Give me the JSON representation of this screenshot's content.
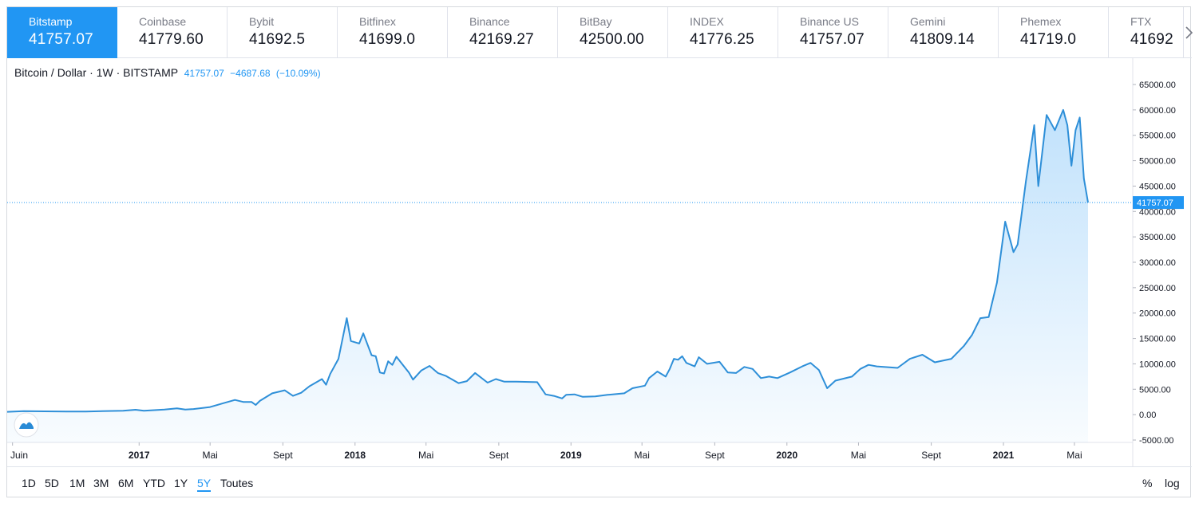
{
  "exchanges": [
    {
      "name": "Bitstamp",
      "price": "41757.07"
    },
    {
      "name": "Coinbase",
      "price": "41779.60"
    },
    {
      "name": "Bybit",
      "price": "41692.5"
    },
    {
      "name": "Bitfinex",
      "price": "41699.0"
    },
    {
      "name": "Binance",
      "price": "42169.27"
    },
    {
      "name": "BitBay",
      "price": "42500.00"
    },
    {
      "name": "INDEX",
      "price": "41776.25"
    },
    {
      "name": "Binance US",
      "price": "41757.07"
    },
    {
      "name": "Gemini",
      "price": "41809.14"
    },
    {
      "name": "Phemex",
      "price": "41719.0"
    },
    {
      "name": "FTX",
      "price": "41692"
    }
  ],
  "legend": {
    "symbol": "Bitcoin / Dollar · 1W · BITSTAMP",
    "last": "41757.07",
    "change": "−4687.68",
    "change_pct": "(−10.09%)"
  },
  "price_tag": "41757.07",
  "ranges": [
    {
      "label": "1D",
      "active": false
    },
    {
      "label": "5D",
      "active": false
    },
    {
      "label": "1M",
      "active": false
    },
    {
      "label": "3M",
      "active": false
    },
    {
      "label": "6M",
      "active": false
    },
    {
      "label": "YTD",
      "active": false
    },
    {
      "label": "1Y",
      "active": false
    },
    {
      "label": "5Y",
      "active": true
    },
    {
      "label": "Toutes",
      "active": false
    }
  ],
  "scale_options": {
    "percent": "%",
    "log": "log"
  },
  "colors": {
    "line": "#2e8fd8",
    "accent": "#2196f3",
    "active_tab": "#2196f3"
  },
  "icons": {
    "next": "chevron-right-icon",
    "logo": "tradingview-logo-icon"
  },
  "chart_data": {
    "type": "area",
    "series_label": "Bitcoin / Dollar · 1W · BITSTAMP",
    "x_ticks": [
      "Juin",
      "2017",
      "Mai",
      "Sept",
      "2018",
      "Mai",
      "Sept",
      "2019",
      "Mai",
      "Sept",
      "2020",
      "Mai",
      "Sept",
      "2021",
      "Mai"
    ],
    "y_ticks": [
      "65000.00",
      "60000.00",
      "55000.00",
      "50000.00",
      "45000.00",
      "40000.00",
      "35000.00",
      "30000.00",
      "25000.00",
      "20000.00",
      "15000.00",
      "10000.00",
      "5000.00",
      "0.00",
      "-5000.00"
    ],
    "ylim": [
      -5000,
      65000
    ],
    "last_price": 41757.07,
    "grid": false,
    "points": [
      [
        "2016-05-23",
        550
      ],
      [
        "2016-06-20",
        700
      ],
      [
        "2016-07-25",
        650
      ],
      [
        "2016-09-01",
        600
      ],
      [
        "2016-10-03",
        620
      ],
      [
        "2016-11-07",
        710
      ],
      [
        "2016-12-05",
        760
      ],
      [
        "2016-12-26",
        960
      ],
      [
        "2017-01-09",
        780
      ],
      [
        "2017-02-13",
        1000
      ],
      [
        "2017-03-06",
        1250
      ],
      [
        "2017-03-20",
        1000
      ],
      [
        "2017-04-03",
        1100
      ],
      [
        "2017-05-01",
        1500
      ],
      [
        "2017-05-22",
        2200
      ],
      [
        "2017-06-12",
        2900
      ],
      [
        "2017-06-26",
        2500
      ],
      [
        "2017-07-10",
        2500
      ],
      [
        "2017-07-17",
        1900
      ],
      [
        "2017-07-24",
        2700
      ],
      [
        "2017-08-14",
        4200
      ],
      [
        "2017-09-04",
        4800
      ],
      [
        "2017-09-18",
        3700
      ],
      [
        "2017-10-02",
        4300
      ],
      [
        "2017-10-16",
        5600
      ],
      [
        "2017-11-06",
        7000
      ],
      [
        "2017-11-13",
        5900
      ],
      [
        "2017-11-20",
        8000
      ],
      [
        "2017-12-04",
        11000
      ],
      [
        "2017-12-18",
        19000
      ],
      [
        "2017-12-25",
        14500
      ],
      [
        "2018-01-08",
        14000
      ],
      [
        "2018-01-15",
        16000
      ],
      [
        "2018-01-29",
        11700
      ],
      [
        "2018-02-05",
        11500
      ],
      [
        "2018-02-12",
        8300
      ],
      [
        "2018-02-19",
        8100
      ],
      [
        "2018-02-26",
        10500
      ],
      [
        "2018-03-05",
        9800
      ],
      [
        "2018-03-12",
        11400
      ],
      [
        "2018-04-02",
        8300
      ],
      [
        "2018-04-09",
        6900
      ],
      [
        "2018-04-23",
        8700
      ],
      [
        "2018-05-07",
        9600
      ],
      [
        "2018-05-21",
        8200
      ],
      [
        "2018-06-04",
        7600
      ],
      [
        "2018-06-25",
        6200
      ],
      [
        "2018-07-09",
        6600
      ],
      [
        "2018-07-23",
        8200
      ],
      [
        "2018-08-13",
        6300
      ],
      [
        "2018-08-27",
        7000
      ],
      [
        "2018-09-10",
        6500
      ],
      [
        "2018-10-01",
        6500
      ],
      [
        "2018-11-05",
        6400
      ],
      [
        "2018-11-19",
        4000
      ],
      [
        "2018-12-03",
        3700
      ],
      [
        "2018-12-17",
        3200
      ],
      [
        "2018-12-24",
        3900
      ],
      [
        "2019-01-07",
        4000
      ],
      [
        "2019-01-21",
        3500
      ],
      [
        "2019-02-11",
        3600
      ],
      [
        "2019-03-04",
        3900
      ],
      [
        "2019-04-01",
        4200
      ],
      [
        "2019-04-15",
        5200
      ],
      [
        "2019-05-06",
        5700
      ],
      [
        "2019-05-13",
        7200
      ],
      [
        "2019-05-27",
        8500
      ],
      [
        "2019-06-10",
        7500
      ],
      [
        "2019-06-17",
        9000
      ],
      [
        "2019-06-24",
        11000
      ],
      [
        "2019-07-01",
        10800
      ],
      [
        "2019-07-08",
        11500
      ],
      [
        "2019-07-15",
        10200
      ],
      [
        "2019-07-29",
        9500
      ],
      [
        "2019-08-05",
        11300
      ],
      [
        "2019-08-19",
        10000
      ],
      [
        "2019-09-09",
        10400
      ],
      [
        "2019-09-23",
        8300
      ],
      [
        "2019-10-07",
        8200
      ],
      [
        "2019-10-21",
        9400
      ],
      [
        "2019-11-04",
        9000
      ],
      [
        "2019-11-18",
        7200
      ],
      [
        "2019-12-02",
        7500
      ],
      [
        "2019-12-16",
        7200
      ],
      [
        "2020-01-06",
        8300
      ],
      [
        "2020-01-27",
        9500
      ],
      [
        "2020-02-10",
        10200
      ],
      [
        "2020-02-24",
        8800
      ],
      [
        "2020-03-09",
        5200
      ],
      [
        "2020-03-23",
        6700
      ],
      [
        "2020-04-20",
        7500
      ],
      [
        "2020-05-04",
        9000
      ],
      [
        "2020-05-18",
        9800
      ],
      [
        "2020-06-01",
        9500
      ],
      [
        "2020-07-06",
        9200
      ],
      [
        "2020-07-27",
        11000
      ],
      [
        "2020-08-17",
        11800
      ],
      [
        "2020-09-07",
        10300
      ],
      [
        "2020-10-05",
        11000
      ],
      [
        "2020-10-26",
        13500
      ],
      [
        "2020-11-09",
        15700
      ],
      [
        "2020-11-23",
        19000
      ],
      [
        "2020-12-07",
        19200
      ],
      [
        "2020-12-21",
        26000
      ],
      [
        "2021-01-04",
        38000
      ],
      [
        "2021-01-18",
        32000
      ],
      [
        "2021-01-25",
        33500
      ],
      [
        "2021-02-08",
        46000
      ],
      [
        "2021-02-22",
        57000
      ],
      [
        "2021-03-01",
        45000
      ],
      [
        "2021-03-15",
        59000
      ],
      [
        "2021-03-29",
        56000
      ],
      [
        "2021-04-12",
        60000
      ],
      [
        "2021-04-19",
        57000
      ],
      [
        "2021-04-26",
        49000
      ],
      [
        "2021-05-03",
        56000
      ],
      [
        "2021-05-10",
        58500
      ],
      [
        "2021-05-17",
        46500
      ],
      [
        "2021-05-24",
        41757.07
      ]
    ]
  }
}
